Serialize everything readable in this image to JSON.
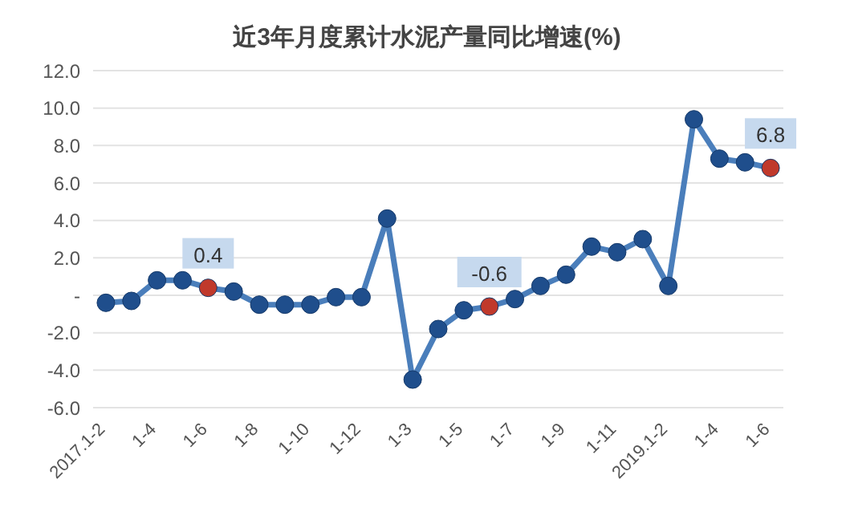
{
  "chart_data": {
    "type": "line",
    "title": "近3年月度累计水泥产量同比增速(%)",
    "categories": [
      "2017.1-2",
      null,
      "1-4",
      null,
      "1-6",
      null,
      "1-8",
      null,
      "1-10",
      null,
      "1-12",
      null,
      "1-3",
      null,
      "1-5",
      null,
      "1-7",
      null,
      "1-9",
      null,
      "1-11",
      null,
      "2019.1-2",
      null,
      "1-4",
      null,
      "1-6"
    ],
    "series": [
      {
        "color": "#4a7ebb",
        "values": [
          -0.4,
          -0.3,
          0.8,
          0.8,
          0.4,
          0.2,
          -0.5,
          -0.5,
          -0.5,
          -0.1,
          -0.1,
          4.1,
          -4.5,
          -1.8,
          -0.8,
          -0.6,
          -0.2,
          0.5,
          1.1,
          2.6,
          2.3,
          3.0,
          0.5,
          9.4,
          7.3,
          7.1,
          6.8
        ],
        "colors": [
          "#1f4e8c",
          "#1f4e8c",
          "#1f4e8c",
          "#1f4e8c",
          "#c0392b",
          "#1f4e8c",
          "#1f4e8c",
          "#1f4e8c",
          "#1f4e8c",
          "#1f4e8c",
          "#1f4e8c",
          "#1f4e8c",
          "#1f4e8c",
          "#1f4e8c",
          "#1f4e8c",
          "#c0392b",
          "#1f4e8c",
          "#1f4e8c",
          "#1f4e8c",
          "#1f4e8c",
          "#1f4e8c",
          "#1f4e8c",
          "#1f4e8c",
          "#1f4e8c",
          "#1f4e8c",
          "#1f4e8c",
          "#c0392b"
        ],
        "value_labels": [
          null,
          null,
          null,
          null,
          "0.4",
          null,
          null,
          null,
          null,
          null,
          null,
          null,
          null,
          null,
          null,
          "-0.6",
          null,
          null,
          null,
          null,
          null,
          null,
          null,
          null,
          null,
          null,
          "6.8"
        ]
      }
    ],
    "ylim": [
      -6,
      12
    ],
    "yticks": [
      {
        "value": -6,
        "label": "-6.0"
      },
      {
        "value": -4,
        "label": "-4.0"
      },
      {
        "value": -2,
        "label": "-2.0"
      },
      {
        "value": 0,
        "label": "-"
      },
      {
        "value": 2,
        "label": "2.0"
      },
      {
        "value": 4,
        "label": "4.0"
      },
      {
        "value": 6,
        "label": "6.0"
      },
      {
        "value": 8,
        "label": "8.0"
      },
      {
        "value": 10,
        "label": "10.0"
      },
      {
        "value": 12,
        "label": "12.0"
      }
    ],
    "grid": "y",
    "marker": "circle",
    "line_style": "solid",
    "legend": false
  }
}
